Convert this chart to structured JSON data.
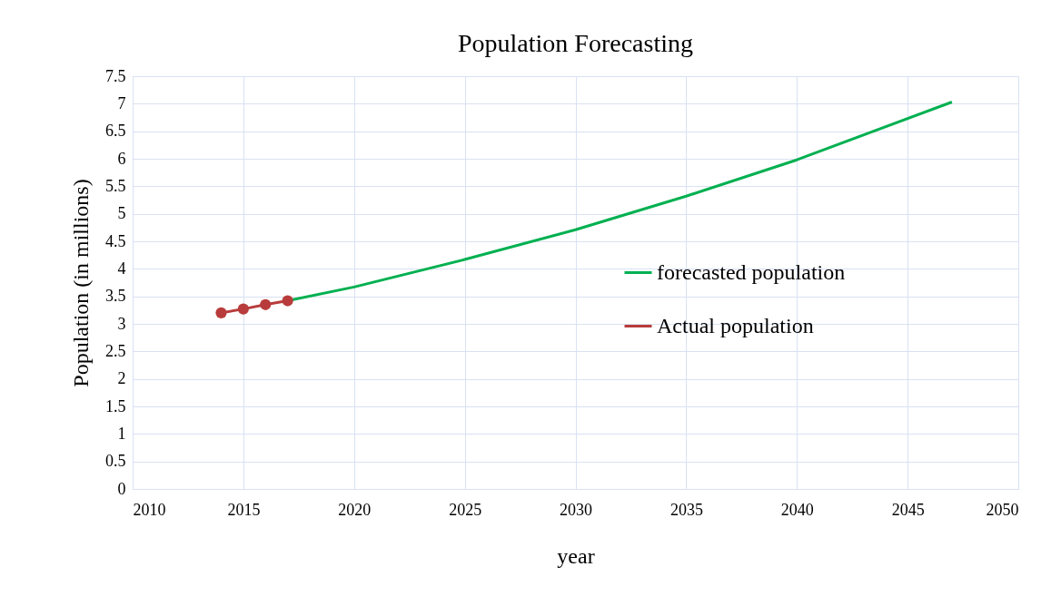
{
  "chart_data": {
    "type": "line",
    "title": "Population Forecasting",
    "xlabel": "year",
    "ylabel": "Population (in millions)",
    "xlim": [
      2010,
      2050
    ],
    "xticks": [
      2010,
      2015,
      2020,
      2025,
      2030,
      2035,
      2040,
      2045,
      2050
    ],
    "ylim": [
      0,
      7.5
    ],
    "yticks": [
      0,
      0.5,
      1,
      1.5,
      2,
      2.5,
      3,
      3.5,
      4,
      4.5,
      5,
      5.5,
      6,
      6.5,
      7,
      7.5
    ],
    "grid": true,
    "legend": "right",
    "line_style": "solid",
    "series": [
      {
        "name": "forecasted population",
        "color": "#00b050",
        "marker": "none",
        "x": [
          2017,
          2020,
          2025,
          2030,
          2035,
          2040,
          2047
        ],
        "values": [
          3.42,
          3.67,
          4.17,
          4.71,
          5.32,
          5.98,
          7.03
        ]
      },
      {
        "name": "Actual population",
        "color": "#b83c3c",
        "marker": "circle",
        "x": [
          2014,
          2015,
          2016,
          2017
        ],
        "values": [
          3.2,
          3.27,
          3.35,
          3.42
        ]
      }
    ]
  }
}
